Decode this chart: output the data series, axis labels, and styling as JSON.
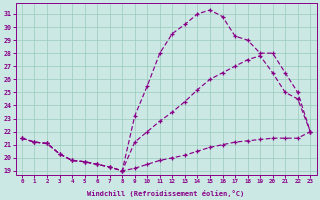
{
  "xlabel": "Windchill (Refroidissement éolien,°C)",
  "bg_color": "#cce8e4",
  "line_color": "#880088",
  "ylim": [
    18.7,
    31.8
  ],
  "yticks": [
    19,
    20,
    21,
    22,
    23,
    24,
    25,
    26,
    27,
    28,
    29,
    30,
    31
  ],
  "xlim": [
    -0.5,
    23.5
  ],
  "xticks": [
    0,
    1,
    2,
    3,
    4,
    5,
    6,
    7,
    8,
    9,
    10,
    11,
    12,
    13,
    14,
    15,
    16,
    17,
    18,
    19,
    20,
    21,
    22,
    23
  ],
  "line1_x": [
    0,
    1,
    2,
    3,
    4,
    5,
    6,
    7,
    8,
    9,
    10,
    11,
    12,
    13,
    14,
    15,
    16,
    17,
    18,
    19,
    20,
    21,
    22,
    23
  ],
  "line1_y": [
    21.5,
    21.2,
    21.1,
    20.3,
    19.8,
    19.7,
    19.5,
    19.3,
    19.0,
    19.2,
    19.5,
    19.8,
    20.0,
    20.2,
    20.5,
    20.8,
    21.0,
    21.2,
    21.3,
    21.4,
    21.5,
    21.5,
    21.5,
    22.0
  ],
  "line2_x": [
    0,
    1,
    2,
    3,
    4,
    5,
    6,
    7,
    8,
    9,
    10,
    11,
    12,
    13,
    14,
    15,
    16,
    17,
    18,
    19,
    20,
    21,
    22,
    23
  ],
  "line2_y": [
    21.5,
    21.2,
    21.1,
    20.3,
    19.8,
    19.7,
    19.5,
    19.3,
    19.0,
    23.2,
    25.5,
    28.0,
    29.5,
    30.2,
    31.0,
    31.3,
    30.8,
    29.3,
    29.0,
    28.0,
    28.0,
    26.5,
    25.0,
    22.0
  ],
  "line3_x": [
    0,
    1,
    2,
    3,
    4,
    5,
    6,
    7,
    8,
    9,
    10,
    11,
    12,
    13,
    14,
    15,
    16,
    17,
    18,
    19,
    20,
    21,
    22,
    23
  ],
  "line3_y": [
    21.5,
    21.2,
    21.1,
    20.3,
    19.8,
    19.7,
    19.5,
    19.3,
    19.0,
    21.2,
    22.0,
    22.8,
    23.5,
    24.3,
    25.2,
    26.0,
    26.5,
    27.0,
    27.5,
    27.8,
    26.5,
    25.0,
    24.5,
    22.0
  ],
  "grid_color": "#99ccbb"
}
